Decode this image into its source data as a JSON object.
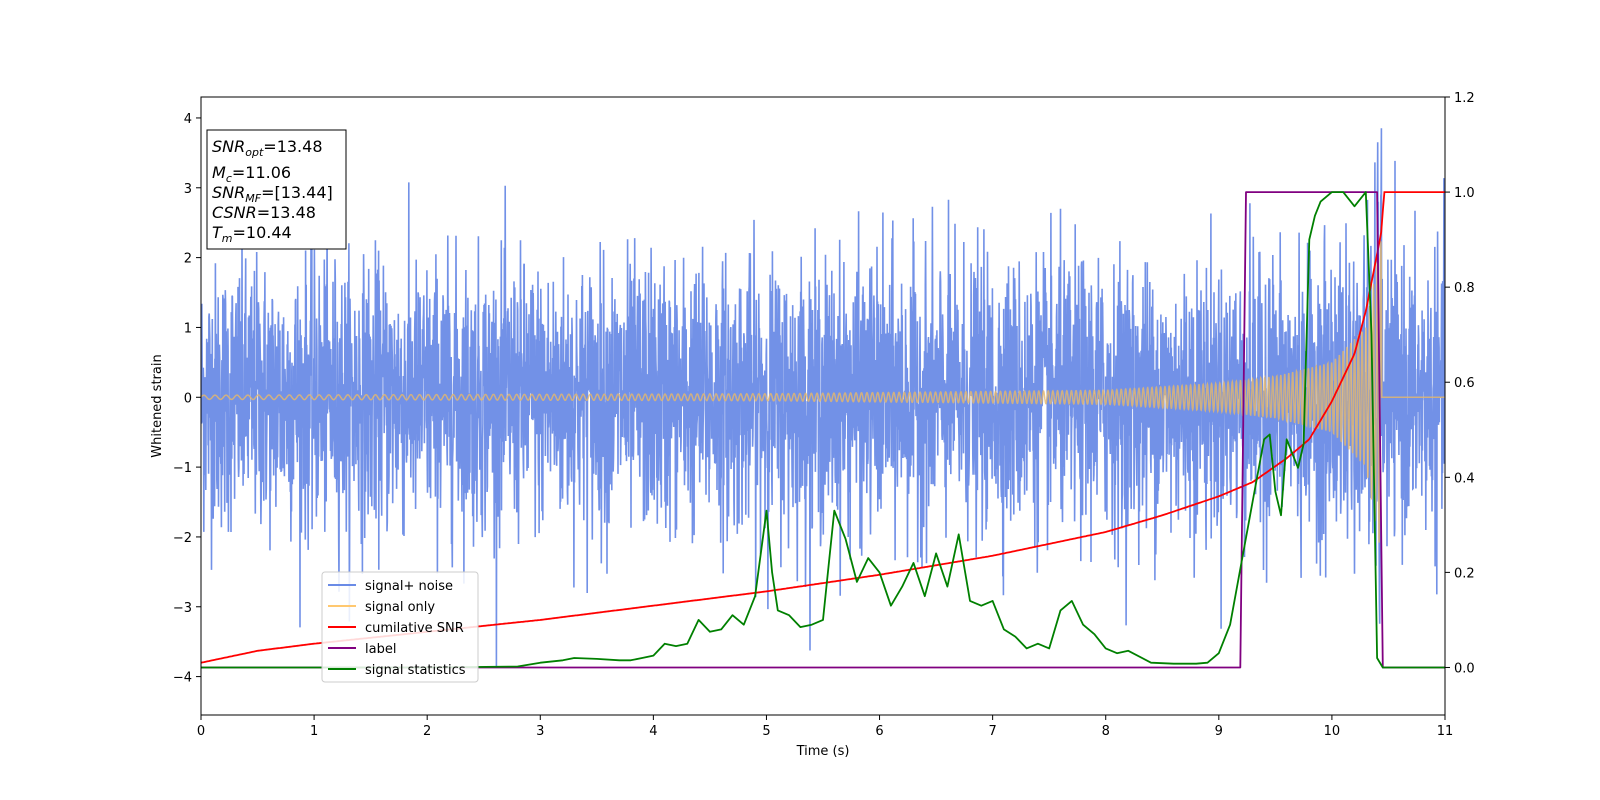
{
  "chart_data": {
    "type": "line",
    "xlabel": "Time (s)",
    "ylabel": "Whitened strain",
    "xlim": [
      0,
      11
    ],
    "ylim": [
      -4.55,
      4.3
    ],
    "y2lim": [
      -0.1,
      1.2
    ],
    "xticks": [
      0,
      1,
      2,
      3,
      4,
      5,
      6,
      7,
      8,
      9,
      10,
      11
    ],
    "yticks": [
      -4,
      -3,
      -2,
      -1,
      0,
      1,
      2,
      3,
      4
    ],
    "y2ticks": [
      "0.0",
      "0.2",
      "0.4",
      "0.6",
      "0.8",
      "1.0",
      "1.2"
    ],
    "legend_position": "lower-left",
    "legend": [
      {
        "label": "signal+ noise",
        "color": "#6a8be6"
      },
      {
        "label": "signal only",
        "color": "#ffc870"
      },
      {
        "label": "cumilative SNR",
        "color": "#ff0000"
      },
      {
        "label": "label",
        "color": "#800080"
      },
      {
        "label": "signal statistics",
        "color": "#008000"
      }
    ],
    "info_box": [
      {
        "base": "SNR",
        "sub": "opt",
        "rest": "=13.48"
      },
      {
        "base": "M",
        "sub": "c",
        "rest": "=11.06"
      },
      {
        "base": "SNR",
        "sub": "MF",
        "rest": "=[13.44]"
      },
      {
        "base": "CSNR",
        "sub": "",
        "rest": "=13.48"
      },
      {
        "base": "T",
        "sub": "m",
        "rest": "=10.44"
      }
    ],
    "series": [
      {
        "name": "signal+ noise",
        "axis": "left",
        "color": "#6a8be6",
        "description": "whitened noise, std ~1, amplitude envelope about ±2.5",
        "noise_std": 1.0
      },
      {
        "name": "signal only",
        "axis": "left",
        "color": "#e6b86a",
        "chirp_start": 0,
        "chirp_end": 10.44,
        "amplitude_points": [
          [
            0,
            0.03
          ],
          [
            5,
            0.05
          ],
          [
            8,
            0.1
          ],
          [
            9,
            0.2
          ],
          [
            9.5,
            0.3
          ],
          [
            10,
            0.5
          ],
          [
            10.3,
            1.0
          ],
          [
            10.44,
            2.3
          ]
        ]
      },
      {
        "name": "cumilative SNR",
        "axis": "right",
        "color": "#ff0000",
        "x": [
          0,
          0.5,
          1,
          2,
          3,
          4,
          5,
          6,
          6.5,
          7,
          7.5,
          8,
          8.5,
          9,
          9.3,
          9.6,
          9.8,
          10,
          10.2,
          10.3,
          10.4,
          10.44,
          10.46,
          11
        ],
        "y": [
          0.01,
          0.035,
          0.05,
          0.075,
          0.1,
          0.13,
          0.16,
          0.195,
          0.215,
          0.235,
          0.26,
          0.285,
          0.32,
          0.36,
          0.39,
          0.44,
          0.48,
          0.56,
          0.66,
          0.75,
          0.87,
          0.92,
          1.0,
          1.0
        ]
      },
      {
        "name": "label",
        "axis": "right",
        "color": "#800080",
        "x": [
          0,
          9.19,
          9.24,
          10.4,
          10.45,
          11
        ],
        "y": [
          0,
          0,
          1,
          1,
          0,
          0
        ]
      },
      {
        "name": "signal statistics",
        "axis": "right",
        "color": "#008000",
        "x": [
          0,
          1,
          2,
          2.8,
          3.0,
          3.2,
          3.3,
          3.5,
          3.7,
          3.8,
          3.9,
          4.0,
          4.1,
          4.2,
          4.3,
          4.4,
          4.5,
          4.6,
          4.7,
          4.8,
          4.9,
          5.0,
          5.05,
          5.1,
          5.2,
          5.3,
          5.4,
          5.5,
          5.6,
          5.7,
          5.8,
          5.9,
          6.0,
          6.1,
          6.2,
          6.3,
          6.4,
          6.5,
          6.6,
          6.7,
          6.8,
          6.9,
          7.0,
          7.1,
          7.2,
          7.3,
          7.4,
          7.5,
          7.6,
          7.7,
          7.8,
          7.9,
          8.0,
          8.1,
          8.2,
          8.4,
          8.6,
          8.8,
          8.9,
          9.0,
          9.1,
          9.2,
          9.3,
          9.4,
          9.45,
          9.5,
          9.55,
          9.6,
          9.7,
          9.75,
          9.8,
          9.85,
          9.9,
          10.0,
          10.1,
          10.2,
          10.3,
          10.35,
          10.4,
          10.45,
          10.5,
          11
        ],
        "y": [
          0,
          0,
          0,
          0.002,
          0.01,
          0.015,
          0.02,
          0.018,
          0.015,
          0.015,
          0.02,
          0.025,
          0.05,
          0.045,
          0.05,
          0.1,
          0.075,
          0.08,
          0.11,
          0.09,
          0.15,
          0.33,
          0.2,
          0.12,
          0.11,
          0.085,
          0.09,
          0.1,
          0.33,
          0.27,
          0.18,
          0.23,
          0.2,
          0.13,
          0.17,
          0.22,
          0.15,
          0.24,
          0.17,
          0.28,
          0.14,
          0.13,
          0.14,
          0.08,
          0.065,
          0.04,
          0.05,
          0.04,
          0.12,
          0.14,
          0.09,
          0.07,
          0.04,
          0.03,
          0.035,
          0.01,
          0.008,
          0.008,
          0.01,
          0.03,
          0.09,
          0.22,
          0.35,
          0.48,
          0.49,
          0.37,
          0.32,
          0.48,
          0.42,
          0.47,
          0.9,
          0.95,
          0.98,
          1.0,
          1.0,
          0.97,
          1.0,
          0.7,
          0.02,
          0.0,
          0.0,
          0.0
        ]
      }
    ]
  }
}
